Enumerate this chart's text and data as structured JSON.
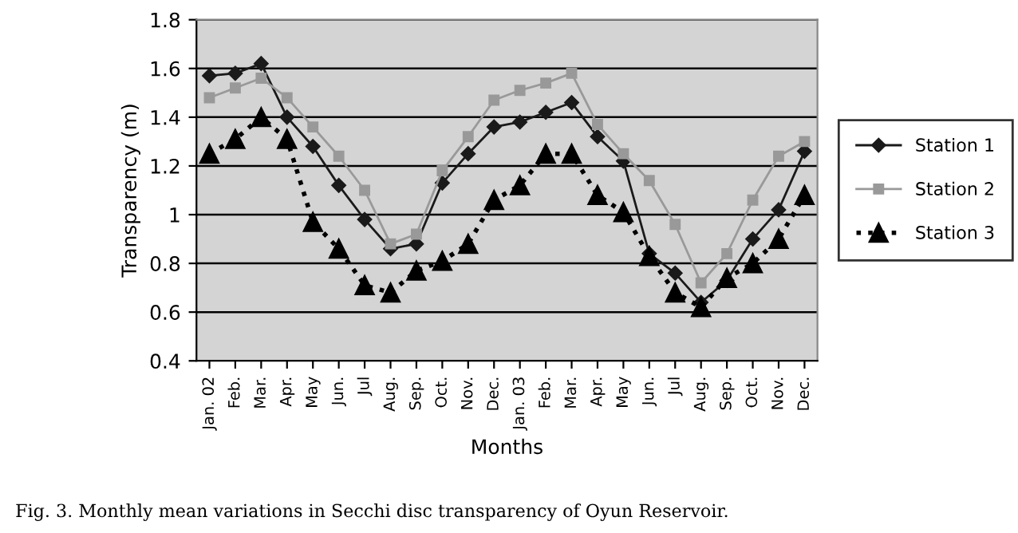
{
  "chart_data": {
    "type": "line",
    "xlabel": "Months",
    "ylabel": "Transparency (m)",
    "categories": [
      "Jan. 02",
      "Feb.",
      "Mar.",
      "Apr.",
      "May",
      "Jun.",
      "Jul",
      "Aug.",
      "Sep.",
      "Oct.",
      "Nov.",
      "Dec.",
      "Jan. 03",
      "Feb.",
      "Mar.",
      "Apr.",
      "May",
      "Jun.",
      "Jul",
      "Aug.",
      "Sep.",
      "Oct.",
      "Nov.",
      "Dec."
    ],
    "series": [
      {
        "name": "Station 1",
        "color": "#1a1a1a",
        "marker": "diamond",
        "line_style": "solid",
        "values": [
          1.57,
          1.58,
          1.62,
          1.4,
          1.28,
          1.12,
          0.98,
          0.86,
          0.88,
          1.13,
          1.25,
          1.36,
          1.38,
          1.42,
          1.46,
          1.32,
          1.22,
          0.84,
          0.76,
          0.64,
          0.73,
          0.9,
          1.02,
          1.26
        ]
      },
      {
        "name": "Station 2",
        "color": "#999999",
        "marker": "square",
        "line_style": "solid",
        "values": [
          1.48,
          1.52,
          1.56,
          1.48,
          1.36,
          1.24,
          1.1,
          0.88,
          0.92,
          1.18,
          1.32,
          1.47,
          1.51,
          1.54,
          1.58,
          1.37,
          1.25,
          1.14,
          0.96,
          0.72,
          0.84,
          1.06,
          1.24,
          1.3
        ]
      },
      {
        "name": "Station 3",
        "color": "#000000",
        "marker": "triangle",
        "line_style": "dotted",
        "values": [
          1.25,
          1.31,
          1.4,
          1.31,
          0.97,
          0.86,
          0.71,
          0.68,
          0.77,
          0.81,
          0.88,
          1.06,
          1.12,
          1.25,
          1.25,
          1.08,
          1.01,
          0.83,
          0.68,
          0.62,
          0.74,
          0.8,
          0.9,
          1.08
        ]
      }
    ],
    "ylim": [
      0.4,
      1.8
    ],
    "yticks": [
      0.4,
      0.6,
      0.8,
      1,
      1.2,
      1.4,
      1.6,
      1.8
    ],
    "grid": "y",
    "legend": "right",
    "annotations": [
      "Fig. 3. Monthly mean variations in Secchi disc transparency of Oyun Reservoir."
    ]
  }
}
